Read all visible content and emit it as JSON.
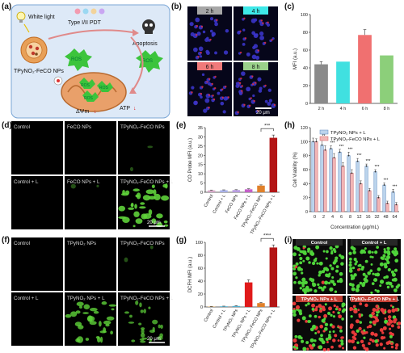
{
  "panel_letters": {
    "a": "(a)",
    "b": "(b)",
    "c": "(c)",
    "d": "(d)",
    "e": "(e)",
    "f": "(f)",
    "g": "(g)",
    "h": "(h)",
    "i": "(i)"
  },
  "schematic": {
    "white_light": "White light",
    "pdt": "Type I/II PDT",
    "apoptosis": "Apoptosis",
    "ros": "ROS",
    "nps": "TPyNO₂-FeCO NPs",
    "membrane": "ΔΨm",
    "atp": "ATP"
  },
  "panel_b": {
    "times": [
      "2 h",
      "4 h",
      "6 h",
      "8 h"
    ],
    "label_colors": [
      "#a6a6a6",
      "#3ee8e8",
      "#f07a7a",
      "#9ad08a"
    ],
    "scale": "20 μm"
  },
  "panel_d": {
    "labels": [
      "Control",
      "FeCO NPs",
      "TPyNO₂-FeCO NPs",
      "Control + L",
      "FeCO NPs + L",
      "TPyNO₂-FeCO NPs + L"
    ],
    "scale": "20 μm"
  },
  "panel_f": {
    "labels": [
      "Control",
      "TPyNO₂ NPs",
      "TPyNO₂-FeCO NPs",
      "Control + L",
      "TPyNO₂ NPs + L",
      "TPyNO₂-FeCO NPs + L"
    ],
    "scale": "20 μm"
  },
  "panel_i": {
    "labels": [
      "Control",
      "Control + L",
      "TPyNO₂ NPs + L",
      "TPyNO₂-FeCO NPs + L"
    ]
  },
  "chart_data": [
    {
      "panel": "c",
      "type": "bar",
      "ylabel": "MFI (a.u.)",
      "ylim": [
        0,
        100
      ],
      "yticks": [
        0,
        20,
        40,
        60,
        80,
        100
      ],
      "categories": [
        "2 h",
        "4 h",
        "6 h",
        "8 h"
      ],
      "values": [
        44,
        47,
        77,
        54
      ],
      "errors": [
        3,
        0,
        6,
        0
      ],
      "colors": [
        "#8a8a8a",
        "#40e0e0",
        "#f07070",
        "#8ccf7a"
      ]
    },
    {
      "panel": "e",
      "type": "bar",
      "ylabel": "CO Probe MFI (a.u.)",
      "ylim": [
        0,
        35
      ],
      "yticks": [
        0,
        5,
        10,
        15,
        20,
        25,
        30,
        35
      ],
      "categories": [
        "Control",
        "Control + L",
        "FeCO NPs",
        "FeCO NPs + L",
        "TPyNO₂-FeCO NPs",
        "TPyNO₂-FeCO NPs + L"
      ],
      "values": [
        1.0,
        1.1,
        1.2,
        1.6,
        3.6,
        29.5
      ],
      "errors": [
        0.2,
        0.2,
        0.2,
        0.3,
        0.4,
        1.5
      ],
      "colors": [
        "#d6a8c8",
        "#a8b0e8",
        "#b89ce0",
        "#c45fc8",
        "#e0802a",
        "#b31515"
      ],
      "significance": "***"
    },
    {
      "panel": "g",
      "type": "bar",
      "ylabel": "DCFH MFI (a.u.)",
      "ylim": [
        0,
        100
      ],
      "yticks": [
        0,
        20,
        40,
        60,
        80,
        100
      ],
      "categories": [
        "Control",
        "Control + L",
        "TPyNO₂ NPs",
        "TPyNO₂ NPs + L",
        "TPyNO₂-FeCO NPs",
        "TPyNO₂-FeCO NPs + L"
      ],
      "values": [
        0.5,
        1.0,
        1.5,
        38,
        6,
        92
      ],
      "errors": [
        0.3,
        0.3,
        0.5,
        4,
        1,
        4
      ],
      "colors": [
        "#f0b050",
        "#50b0d0",
        "#50b0d0",
        "#e01a1a",
        "#e0802a",
        "#b31515"
      ],
      "significance": "****"
    },
    {
      "panel": "h",
      "type": "bar",
      "ylabel": "Cell Viability (%)",
      "xlabel": "Concentration (μg/mL)",
      "ylim": [
        0,
        120
      ],
      "yticks": [
        0,
        20,
        40,
        60,
        80,
        100,
        120
      ],
      "categories": [
        "0",
        "2",
        "4",
        "6",
        "8",
        "12",
        "16",
        "32",
        "48",
        "64"
      ],
      "series": [
        {
          "name": "TPyNO₂ NPs + L",
          "values": [
            100,
            95,
            90,
            85,
            80,
            72,
            65,
            57,
            38,
            28
          ],
          "errors": [
            5,
            9,
            4,
            4,
            5,
            4,
            3,
            3,
            3,
            4
          ],
          "color": "#bcd4ec"
        },
        {
          "name": "TPyNO₂-FeCO NPs + L",
          "values": [
            100,
            88,
            77,
            65,
            55,
            40,
            30,
            20,
            12,
            10
          ],
          "errors": [
            4,
            6,
            6,
            5,
            5,
            4,
            3,
            3,
            3,
            3
          ],
          "color": "#f2b6b6"
        }
      ],
      "significance_marks": [
        "*",
        "**",
        "***",
        "***",
        "***",
        "***",
        "***",
        "***",
        "***",
        "***"
      ]
    }
  ]
}
